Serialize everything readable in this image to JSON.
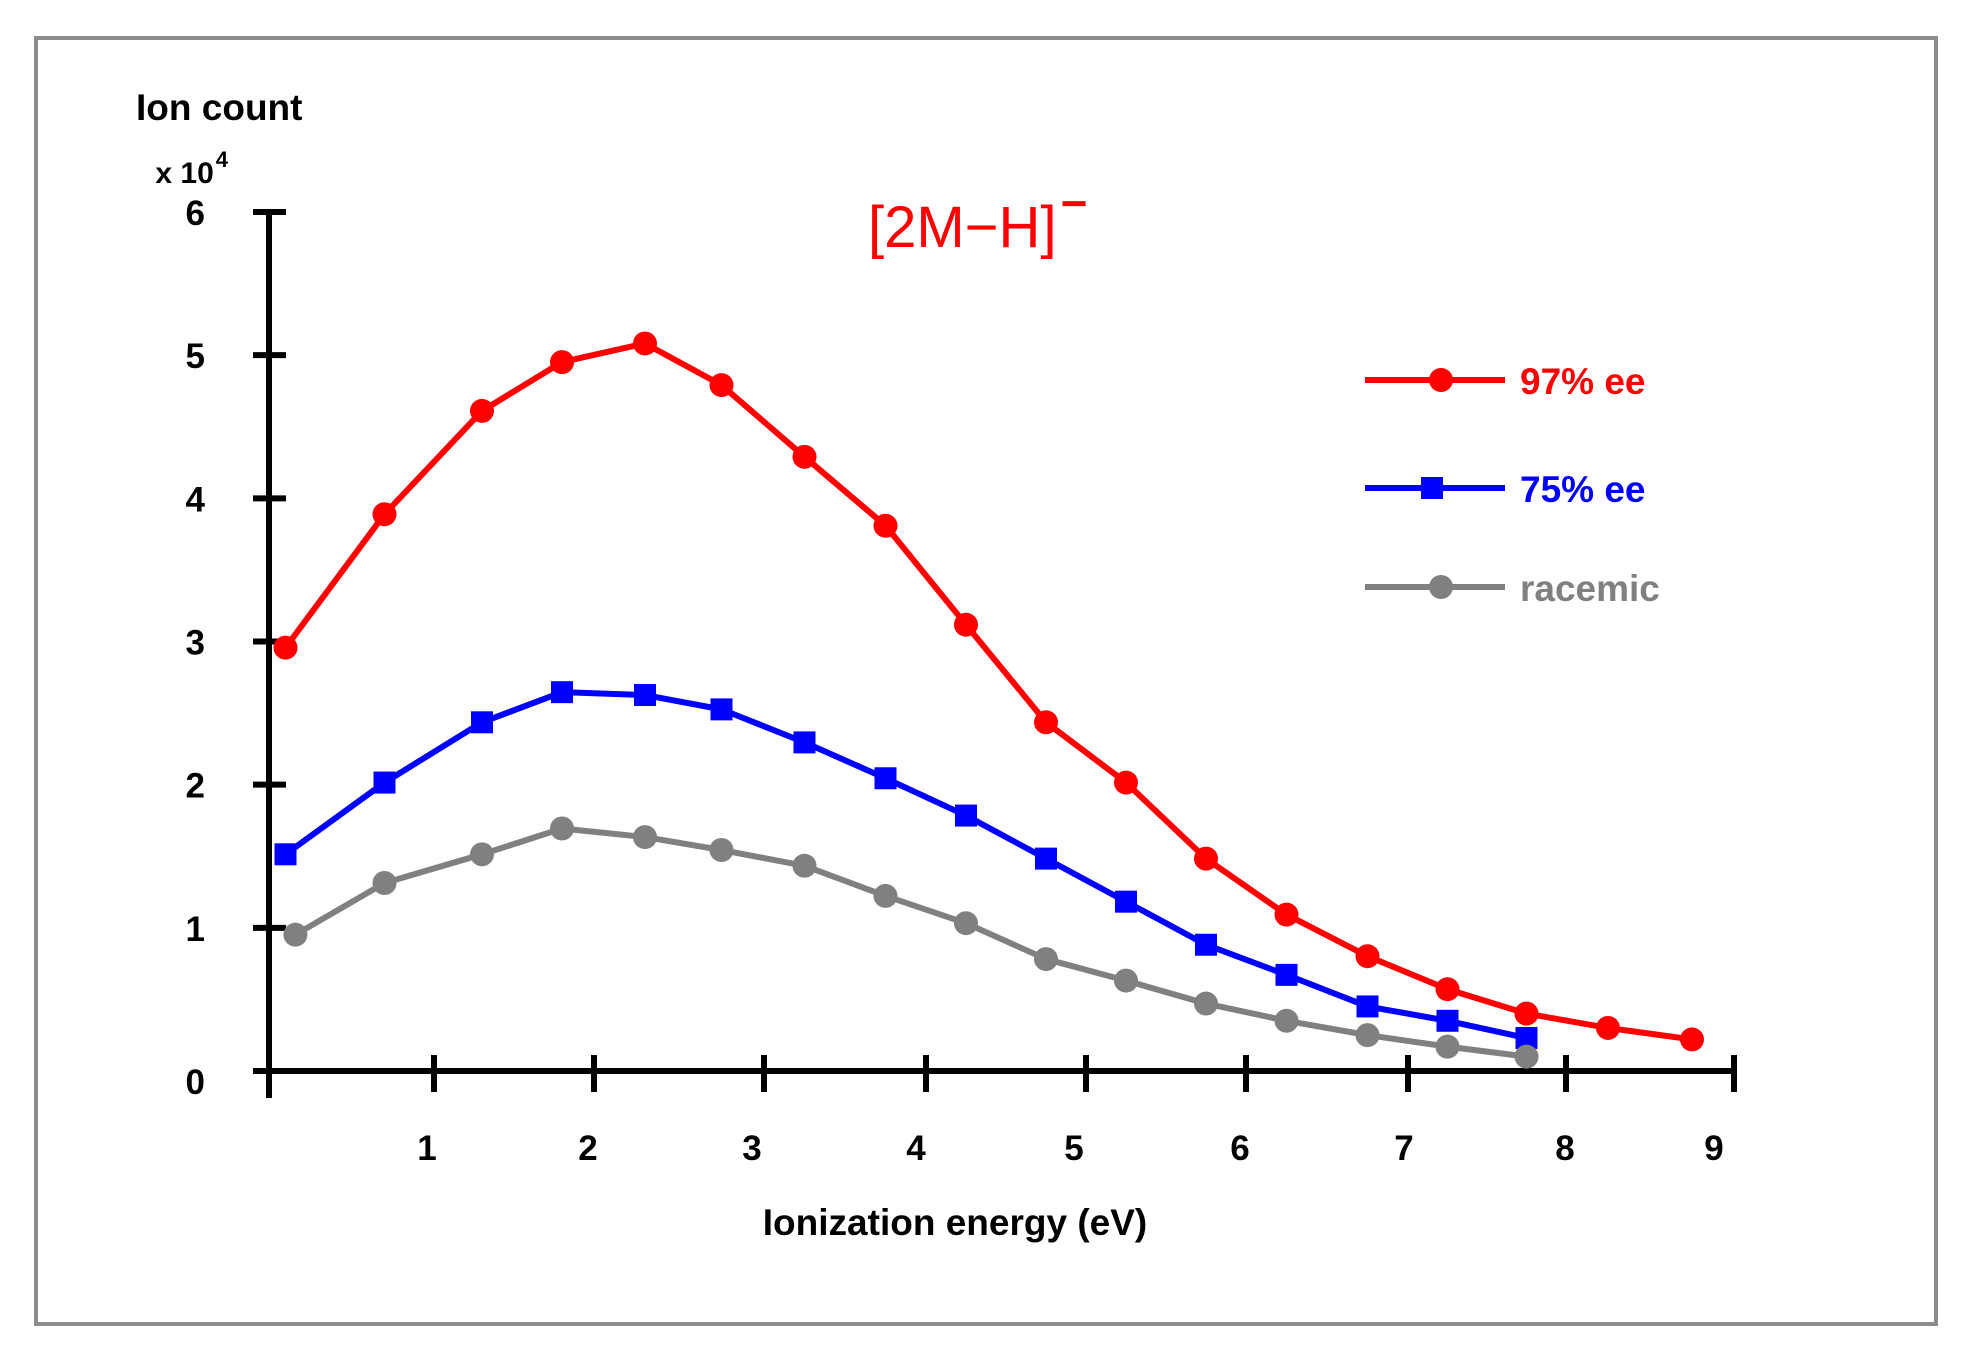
{
  "chart_data": {
    "type": "line",
    "title": "[2M−H]",
    "title_superscript": "−",
    "xlabel": "Ionization energy (eV)",
    "ylabel": "Ion count",
    "ylabel_multiplier_base": "x 10",
    "ylabel_multiplier_exp": "4",
    "xlim": [
      0,
      9
    ],
    "ylim": [
      0,
      6
    ],
    "x_ticks": [
      1,
      2,
      3,
      4,
      5,
      6,
      7,
      8,
      9
    ],
    "x_tick_labels": [
      "1",
      "2",
      "3",
      "4",
      "5",
      "6",
      "7",
      "8",
      "9"
    ],
    "y_ticks": [
      0,
      1,
      2,
      3,
      4,
      5,
      6
    ],
    "y_tick_labels": [
      "0",
      "1",
      "2",
      "3",
      "4",
      "5",
      "6"
    ],
    "grid": false,
    "legend_position": "top-right",
    "series": [
      {
        "name": "97% ee",
        "color": "#ff0000",
        "marker": "circle",
        "x": [
          0.25,
          0.75,
          1.3,
          1.8,
          2.3,
          2.75,
          3.25,
          3.75,
          4.25,
          4.75,
          5.25,
          5.75,
          6.25,
          6.75,
          7.25,
          7.75,
          8.25,
          8.75
        ],
        "values": [
          2.95,
          3.88,
          4.6,
          4.94,
          5.07,
          4.78,
          4.28,
          3.8,
          3.11,
          2.43,
          2.01,
          1.48,
          1.09,
          0.8,
          0.57,
          0.4,
          0.3,
          0.22
        ]
      },
      {
        "name": "75% ee",
        "color": "#0000ff",
        "marker": "square",
        "x": [
          0.25,
          0.75,
          1.3,
          1.8,
          2.3,
          2.75,
          3.25,
          3.75,
          4.25,
          4.75,
          5.25,
          5.75,
          6.25,
          6.75,
          7.25,
          7.75
        ],
        "values": [
          1.51,
          2.01,
          2.43,
          2.64,
          2.62,
          2.52,
          2.29,
          2.04,
          1.78,
          1.48,
          1.18,
          0.88,
          0.67,
          0.45,
          0.35,
          0.23
        ]
      },
      {
        "name": "racemic",
        "color": "#808080",
        "marker": "circle",
        "x": [
          0.3,
          0.75,
          1.3,
          1.8,
          2.3,
          2.75,
          3.25,
          3.75,
          4.25,
          4.75,
          5.25,
          5.75,
          6.25,
          6.75,
          7.25,
          7.75
        ],
        "values": [
          0.95,
          1.31,
          1.51,
          1.69,
          1.63,
          1.54,
          1.43,
          1.22,
          1.03,
          0.78,
          0.63,
          0.47,
          0.35,
          0.25,
          0.17,
          0.1
        ]
      }
    ]
  }
}
